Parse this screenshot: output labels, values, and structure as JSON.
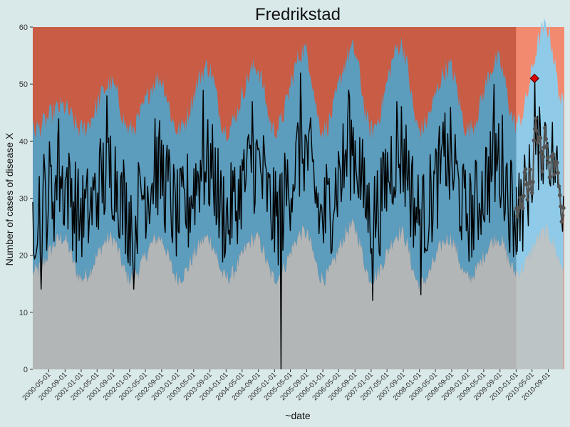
{
  "chart_data": {
    "type": "line",
    "title": "Fredrikstad",
    "xlabel": "~date",
    "ylabel": "Number of cases of disease X",
    "ylim": [
      0,
      60
    ],
    "y_ticks": [
      0,
      10,
      20,
      30,
      40,
      50,
      60
    ],
    "x_range": [
      "2000-01-01",
      "2010-12-31"
    ],
    "x_ticks": [
      "2000-05-01",
      "2000-09-01",
      "2001-01-01",
      "2001-05-01",
      "2001-09-01",
      "2002-01-01",
      "2002-05-01",
      "2002-09-01",
      "2003-01-01",
      "2003-05-01",
      "2003-09-01",
      "2004-01-01",
      "2004-05-01",
      "2004-09-01",
      "2005-01-01",
      "2005-05-01",
      "2005-09-01",
      "2006-01-01",
      "2006-05-01",
      "2006-09-01",
      "2007-01-01",
      "2007-05-01",
      "2007-09-01",
      "2008-01-01",
      "2008-05-01",
      "2008-09-01",
      "2009-01-01",
      "2009-05-01",
      "2009-09-01",
      "2010-01-01",
      "2010-05-01",
      "2010-09-01"
    ],
    "prediction_start": "2010-01-01",
    "colors": {
      "background": "#d9e8e8",
      "baseline_zone": "#b3b6b6",
      "normal_zone": "#5c9cbd",
      "high_zone": "#c85c45",
      "baseline_zone_current": "#bcc4c6",
      "normal_zone_current": "#8fcbe8",
      "high_zone_current": "#f28a70",
      "observed_line": "#000000",
      "current_points": "#555555",
      "alert_marker": "#dd0000"
    },
    "zone_series": {
      "description_keys": [
        "date",
        "lower_threshold",
        "upper_threshold"
      ],
      "seasonal_anchors": [
        {
          "date": "2000-01-01",
          "lower": 17,
          "upper": 42
        },
        {
          "date": "2000-08-15",
          "lower": 23,
          "upper": 46
        },
        {
          "date": "2001-01-01",
          "lower": 16,
          "upper": 42
        },
        {
          "date": "2001-08-15",
          "lower": 23,
          "upper": 50
        },
        {
          "date": "2002-01-01",
          "lower": 16,
          "upper": 42
        },
        {
          "date": "2002-08-15",
          "lower": 23,
          "upper": 51
        },
        {
          "date": "2003-01-01",
          "lower": 16,
          "upper": 42
        },
        {
          "date": "2003-08-15",
          "lower": 23,
          "upper": 53
        },
        {
          "date": "2004-01-01",
          "lower": 16,
          "upper": 42
        },
        {
          "date": "2004-08-15",
          "lower": 23,
          "upper": 53
        },
        {
          "date": "2005-01-01",
          "lower": 16,
          "upper": 42
        },
        {
          "date": "2005-08-15",
          "lower": 24,
          "upper": 56
        },
        {
          "date": "2006-01-01",
          "lower": 16,
          "upper": 42
        },
        {
          "date": "2006-08-15",
          "lower": 25,
          "upper": 56
        },
        {
          "date": "2007-01-01",
          "lower": 16,
          "upper": 42
        },
        {
          "date": "2007-08-15",
          "lower": 24,
          "upper": 57
        },
        {
          "date": "2008-01-01",
          "lower": 15,
          "upper": 42
        },
        {
          "date": "2008-08-15",
          "lower": 23,
          "upper": 53
        },
        {
          "date": "2009-01-01",
          "lower": 16,
          "upper": 42
        },
        {
          "date": "2009-08-15",
          "lower": 23,
          "upper": 54
        },
        {
          "date": "2010-01-01",
          "lower": 17,
          "upper": 43
        },
        {
          "date": "2010-08-15",
          "lower": 24,
          "upper": 60
        },
        {
          "date": "2010-12-31",
          "lower": 18,
          "upper": 46
        }
      ]
    },
    "observed_series": {
      "name": "",
      "weekly_seasonal_peaks": [
        {
          "date": "2000-07-15",
          "value": 44
        },
        {
          "date": "2001-07-15",
          "value": 48
        },
        {
          "date": "2002-07-15",
          "value": 44
        },
        {
          "date": "2003-07-15",
          "value": 49
        },
        {
          "date": "2004-07-15",
          "value": 47
        },
        {
          "date": "2005-07-15",
          "value": 52
        },
        {
          "date": "2006-07-15",
          "value": 49
        },
        {
          "date": "2007-07-15",
          "value": 47
        },
        {
          "date": "2008-07-15",
          "value": 45
        },
        {
          "date": "2009-07-15",
          "value": 50
        },
        {
          "date": "2010-06-15",
          "value": 53
        }
      ],
      "notable_points": [
        {
          "date": "2000-03-01",
          "value": 14
        },
        {
          "date": "2002-02-01",
          "value": 14
        },
        {
          "date": "2005-02-20",
          "value": 0
        },
        {
          "date": "2007-01-15",
          "value": 12
        },
        {
          "date": "2008-01-15",
          "value": 13
        }
      ]
    },
    "current_points": {
      "date_range": [
        "2010-01-01",
        "2010-12-31"
      ],
      "typical_range": [
        25,
        38
      ]
    },
    "alert": {
      "date": "2010-05-20",
      "value": 51
    }
  }
}
